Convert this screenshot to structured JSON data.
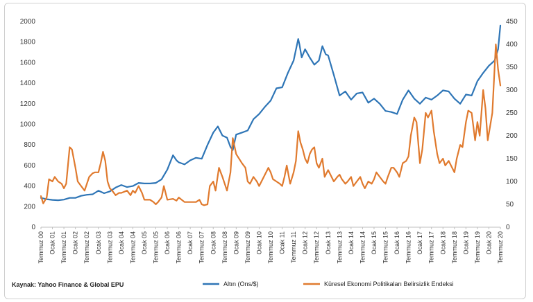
{
  "source_text": "Kaynak: Yahoo Finance & Global EPU",
  "colors": {
    "gold": "#2E75B6",
    "epu": "#E07A2E",
    "axis": "#bfbfbf",
    "text": "#333333"
  },
  "chart_data": {
    "type": "line",
    "title": "",
    "xlabel": "",
    "y_left": {
      "label": "",
      "range": [
        0,
        2000
      ],
      "ticks": [
        "0",
        "200",
        "400",
        "600",
        "800",
        "1000",
        "1200",
        "1400",
        "1600",
        "1800",
        "2000"
      ]
    },
    "y_right": {
      "label": "",
      "range": [
        0,
        450
      ],
      "ticks": [
        "0",
        "50",
        "100",
        "150",
        "200",
        "250",
        "300",
        "350",
        "400",
        "450"
      ]
    },
    "x_range": [
      2000.5,
      2020.5
    ],
    "x_ticks": [
      "Temmuz 00",
      "Ocak 01",
      "Temmuz 01",
      "Ocak 02",
      "Temmuz 02",
      "Ocak 03",
      "Temmuz 03",
      "Ocak 04",
      "Temmuz 04",
      "Ocak 05",
      "Temmuz 05",
      "Ocak 06",
      "Temmuz 06",
      "Ocak 07",
      "Temmuz 07",
      "Ocak 08",
      "Temmuz 08",
      "Ocak 09",
      "Temmuz 09",
      "Ocak 10",
      "Temmuz 10",
      "Ocak 11",
      "Temmuz 11",
      "Ocak 12",
      "Temmuz 12",
      "Ocak 13",
      "Temmuz 13",
      "Ocak 14",
      "Temmuz 14",
      "Ocak 15",
      "Temmuz 15",
      "Ocak 16",
      "Temmuz 16",
      "Ocak 17",
      "Temmuz 17",
      "Ocak 18",
      "Temmuz 18",
      "Ocak 19",
      "Temmuz 19",
      "Ocak 20",
      "Temmuz 20"
    ],
    "legend_position": "bottom",
    "grid": false,
    "series": [
      {
        "name": "Altın (Ons/$)",
        "axis": "left",
        "color": "#2E75B6",
        "points": [
          [
            2000.5,
            285
          ],
          [
            2000.75,
            272
          ],
          [
            2001.0,
            265
          ],
          [
            2001.25,
            262
          ],
          [
            2001.5,
            268
          ],
          [
            2001.75,
            285
          ],
          [
            2002.0,
            285
          ],
          [
            2002.25,
            305
          ],
          [
            2002.5,
            315
          ],
          [
            2002.75,
            320
          ],
          [
            2003.0,
            355
          ],
          [
            2003.25,
            330
          ],
          [
            2003.5,
            348
          ],
          [
            2003.75,
            385
          ],
          [
            2004.0,
            410
          ],
          [
            2004.25,
            390
          ],
          [
            2004.5,
            400
          ],
          [
            2004.75,
            430
          ],
          [
            2005.0,
            425
          ],
          [
            2005.25,
            425
          ],
          [
            2005.5,
            430
          ],
          [
            2005.75,
            465
          ],
          [
            2006.0,
            560
          ],
          [
            2006.25,
            700
          ],
          [
            2006.4,
            650
          ],
          [
            2006.5,
            630
          ],
          [
            2006.75,
            610
          ],
          [
            2007.0,
            650
          ],
          [
            2007.25,
            675
          ],
          [
            2007.5,
            665
          ],
          [
            2007.75,
            800
          ],
          [
            2008.0,
            920
          ],
          [
            2008.2,
            980
          ],
          [
            2008.4,
            890
          ],
          [
            2008.6,
            870
          ],
          [
            2008.75,
            780
          ],
          [
            2008.85,
            750
          ],
          [
            2009.0,
            900
          ],
          [
            2009.25,
            920
          ],
          [
            2009.5,
            940
          ],
          [
            2009.75,
            1050
          ],
          [
            2010.0,
            1100
          ],
          [
            2010.25,
            1170
          ],
          [
            2010.5,
            1230
          ],
          [
            2010.75,
            1350
          ],
          [
            2011.0,
            1360
          ],
          [
            2011.25,
            1500
          ],
          [
            2011.5,
            1620
          ],
          [
            2011.7,
            1830
          ],
          [
            2011.75,
            1780
          ],
          [
            2011.85,
            1650
          ],
          [
            2012.0,
            1730
          ],
          [
            2012.2,
            1650
          ],
          [
            2012.4,
            1580
          ],
          [
            2012.6,
            1620
          ],
          [
            2012.75,
            1760
          ],
          [
            2012.9,
            1680
          ],
          [
            2013.0,
            1670
          ],
          [
            2013.25,
            1480
          ],
          [
            2013.5,
            1280
          ],
          [
            2013.75,
            1320
          ],
          [
            2014.0,
            1240
          ],
          [
            2014.25,
            1300
          ],
          [
            2014.5,
            1310
          ],
          [
            2014.75,
            1210
          ],
          [
            2015.0,
            1250
          ],
          [
            2015.25,
            1200
          ],
          [
            2015.5,
            1130
          ],
          [
            2015.75,
            1120
          ],
          [
            2016.0,
            1100
          ],
          [
            2016.25,
            1240
          ],
          [
            2016.5,
            1330
          ],
          [
            2016.75,
            1250
          ],
          [
            2017.0,
            1200
          ],
          [
            2017.25,
            1260
          ],
          [
            2017.5,
            1240
          ],
          [
            2017.75,
            1280
          ],
          [
            2018.0,
            1330
          ],
          [
            2018.25,
            1320
          ],
          [
            2018.5,
            1250
          ],
          [
            2018.75,
            1200
          ],
          [
            2019.0,
            1290
          ],
          [
            2019.25,
            1280
          ],
          [
            2019.5,
            1420
          ],
          [
            2019.75,
            1500
          ],
          [
            2020.0,
            1570
          ],
          [
            2020.25,
            1620
          ],
          [
            2020.4,
            1730
          ],
          [
            2020.5,
            1960
          ]
        ]
      },
      {
        "name": "Küresel Ekonomi Politikaları Belirsizlik Endeksi",
        "axis": "right",
        "color": "#E07A2E",
        "points": [
          [
            2000.5,
            68
          ],
          [
            2000.6,
            52
          ],
          [
            2000.75,
            65
          ],
          [
            2000.85,
            105
          ],
          [
            2001.0,
            100
          ],
          [
            2001.1,
            110
          ],
          [
            2001.25,
            100
          ],
          [
            2001.4,
            95
          ],
          [
            2001.5,
            85
          ],
          [
            2001.6,
            95
          ],
          [
            2001.75,
            175
          ],
          [
            2001.85,
            170
          ],
          [
            2002.0,
            130
          ],
          [
            2002.1,
            100
          ],
          [
            2002.25,
            90
          ],
          [
            2002.4,
            80
          ],
          [
            2002.5,
            95
          ],
          [
            2002.6,
            110
          ],
          [
            2002.75,
            118
          ],
          [
            2002.85,
            120
          ],
          [
            2003.0,
            120
          ],
          [
            2003.1,
            140
          ],
          [
            2003.2,
            165
          ],
          [
            2003.3,
            145
          ],
          [
            2003.4,
            100
          ],
          [
            2003.5,
            85
          ],
          [
            2003.6,
            80
          ],
          [
            2003.75,
            70
          ],
          [
            2003.9,
            75
          ],
          [
            2004.0,
            75
          ],
          [
            2004.25,
            80
          ],
          [
            2004.4,
            70
          ],
          [
            2004.5,
            80
          ],
          [
            2004.6,
            75
          ],
          [
            2004.75,
            90
          ],
          [
            2004.9,
            75
          ],
          [
            2005.0,
            60
          ],
          [
            2005.25,
            60
          ],
          [
            2005.4,
            55
          ],
          [
            2005.5,
            50
          ],
          [
            2005.6,
            55
          ],
          [
            2005.75,
            65
          ],
          [
            2005.85,
            90
          ],
          [
            2006.0,
            60
          ],
          [
            2006.25,
            62
          ],
          [
            2006.4,
            58
          ],
          [
            2006.5,
            65
          ],
          [
            2006.75,
            55
          ],
          [
            2007.0,
            55
          ],
          [
            2007.25,
            55
          ],
          [
            2007.4,
            60
          ],
          [
            2007.5,
            50
          ],
          [
            2007.6,
            48
          ],
          [
            2007.75,
            50
          ],
          [
            2007.85,
            90
          ],
          [
            2008.0,
            100
          ],
          [
            2008.1,
            80
          ],
          [
            2008.25,
            130
          ],
          [
            2008.4,
            110
          ],
          [
            2008.5,
            95
          ],
          [
            2008.6,
            80
          ],
          [
            2008.75,
            120
          ],
          [
            2008.85,
            195
          ],
          [
            2009.0,
            160
          ],
          [
            2009.25,
            140
          ],
          [
            2009.4,
            130
          ],
          [
            2009.5,
            100
          ],
          [
            2009.6,
            95
          ],
          [
            2009.75,
            110
          ],
          [
            2009.9,
            100
          ],
          [
            2010.0,
            90
          ],
          [
            2010.2,
            110
          ],
          [
            2010.4,
            130
          ],
          [
            2010.5,
            120
          ],
          [
            2010.6,
            105
          ],
          [
            2010.75,
            100
          ],
          [
            2010.9,
            95
          ],
          [
            2011.0,
            90
          ],
          [
            2011.1,
            110
          ],
          [
            2011.2,
            135
          ],
          [
            2011.35,
            95
          ],
          [
            2011.5,
            120
          ],
          [
            2011.6,
            145
          ],
          [
            2011.7,
            210
          ],
          [
            2011.8,
            185
          ],
          [
            2011.9,
            170
          ],
          [
            2012.0,
            150
          ],
          [
            2012.1,
            140
          ],
          [
            2012.2,
            160
          ],
          [
            2012.3,
            170
          ],
          [
            2012.4,
            175
          ],
          [
            2012.5,
            140
          ],
          [
            2012.6,
            130
          ],
          [
            2012.75,
            150
          ],
          [
            2012.85,
            110
          ],
          [
            2013.0,
            125
          ],
          [
            2013.1,
            115
          ],
          [
            2013.25,
            100
          ],
          [
            2013.4,
            110
          ],
          [
            2013.5,
            115
          ],
          [
            2013.6,
            105
          ],
          [
            2013.75,
            95
          ],
          [
            2013.85,
            100
          ],
          [
            2014.0,
            110
          ],
          [
            2014.1,
            90
          ],
          [
            2014.25,
            100
          ],
          [
            2014.4,
            110
          ],
          [
            2014.5,
            95
          ],
          [
            2014.6,
            85
          ],
          [
            2014.75,
            100
          ],
          [
            2014.9,
            95
          ],
          [
            2015.0,
            105
          ],
          [
            2015.1,
            120
          ],
          [
            2015.25,
            110
          ],
          [
            2015.4,
            100
          ],
          [
            2015.5,
            95
          ],
          [
            2015.6,
            110
          ],
          [
            2015.75,
            130
          ],
          [
            2015.85,
            130
          ],
          [
            2016.0,
            120
          ],
          [
            2016.1,
            110
          ],
          [
            2016.25,
            140
          ],
          [
            2016.4,
            145
          ],
          [
            2016.5,
            155
          ],
          [
            2016.6,
            200
          ],
          [
            2016.75,
            240
          ],
          [
            2016.85,
            230
          ],
          [
            2017.0,
            140
          ],
          [
            2017.1,
            170
          ],
          [
            2017.25,
            250
          ],
          [
            2017.35,
            240
          ],
          [
            2017.5,
            255
          ],
          [
            2017.6,
            210
          ],
          [
            2017.75,
            160
          ],
          [
            2017.85,
            140
          ],
          [
            2018.0,
            150
          ],
          [
            2018.1,
            135
          ],
          [
            2018.25,
            145
          ],
          [
            2018.4,
            130
          ],
          [
            2018.5,
            120
          ],
          [
            2018.6,
            150
          ],
          [
            2018.75,
            180
          ],
          [
            2018.85,
            175
          ],
          [
            2019.0,
            230
          ],
          [
            2019.1,
            255
          ],
          [
            2019.25,
            250
          ],
          [
            2019.4,
            190
          ],
          [
            2019.5,
            230
          ],
          [
            2019.6,
            200
          ],
          [
            2019.75,
            300
          ],
          [
            2019.85,
            260
          ],
          [
            2019.95,
            190
          ],
          [
            2020.05,
            220
          ],
          [
            2020.15,
            250
          ],
          [
            2020.3,
            400
          ],
          [
            2020.4,
            345
          ],
          [
            2020.5,
            310
          ]
        ]
      }
    ]
  }
}
